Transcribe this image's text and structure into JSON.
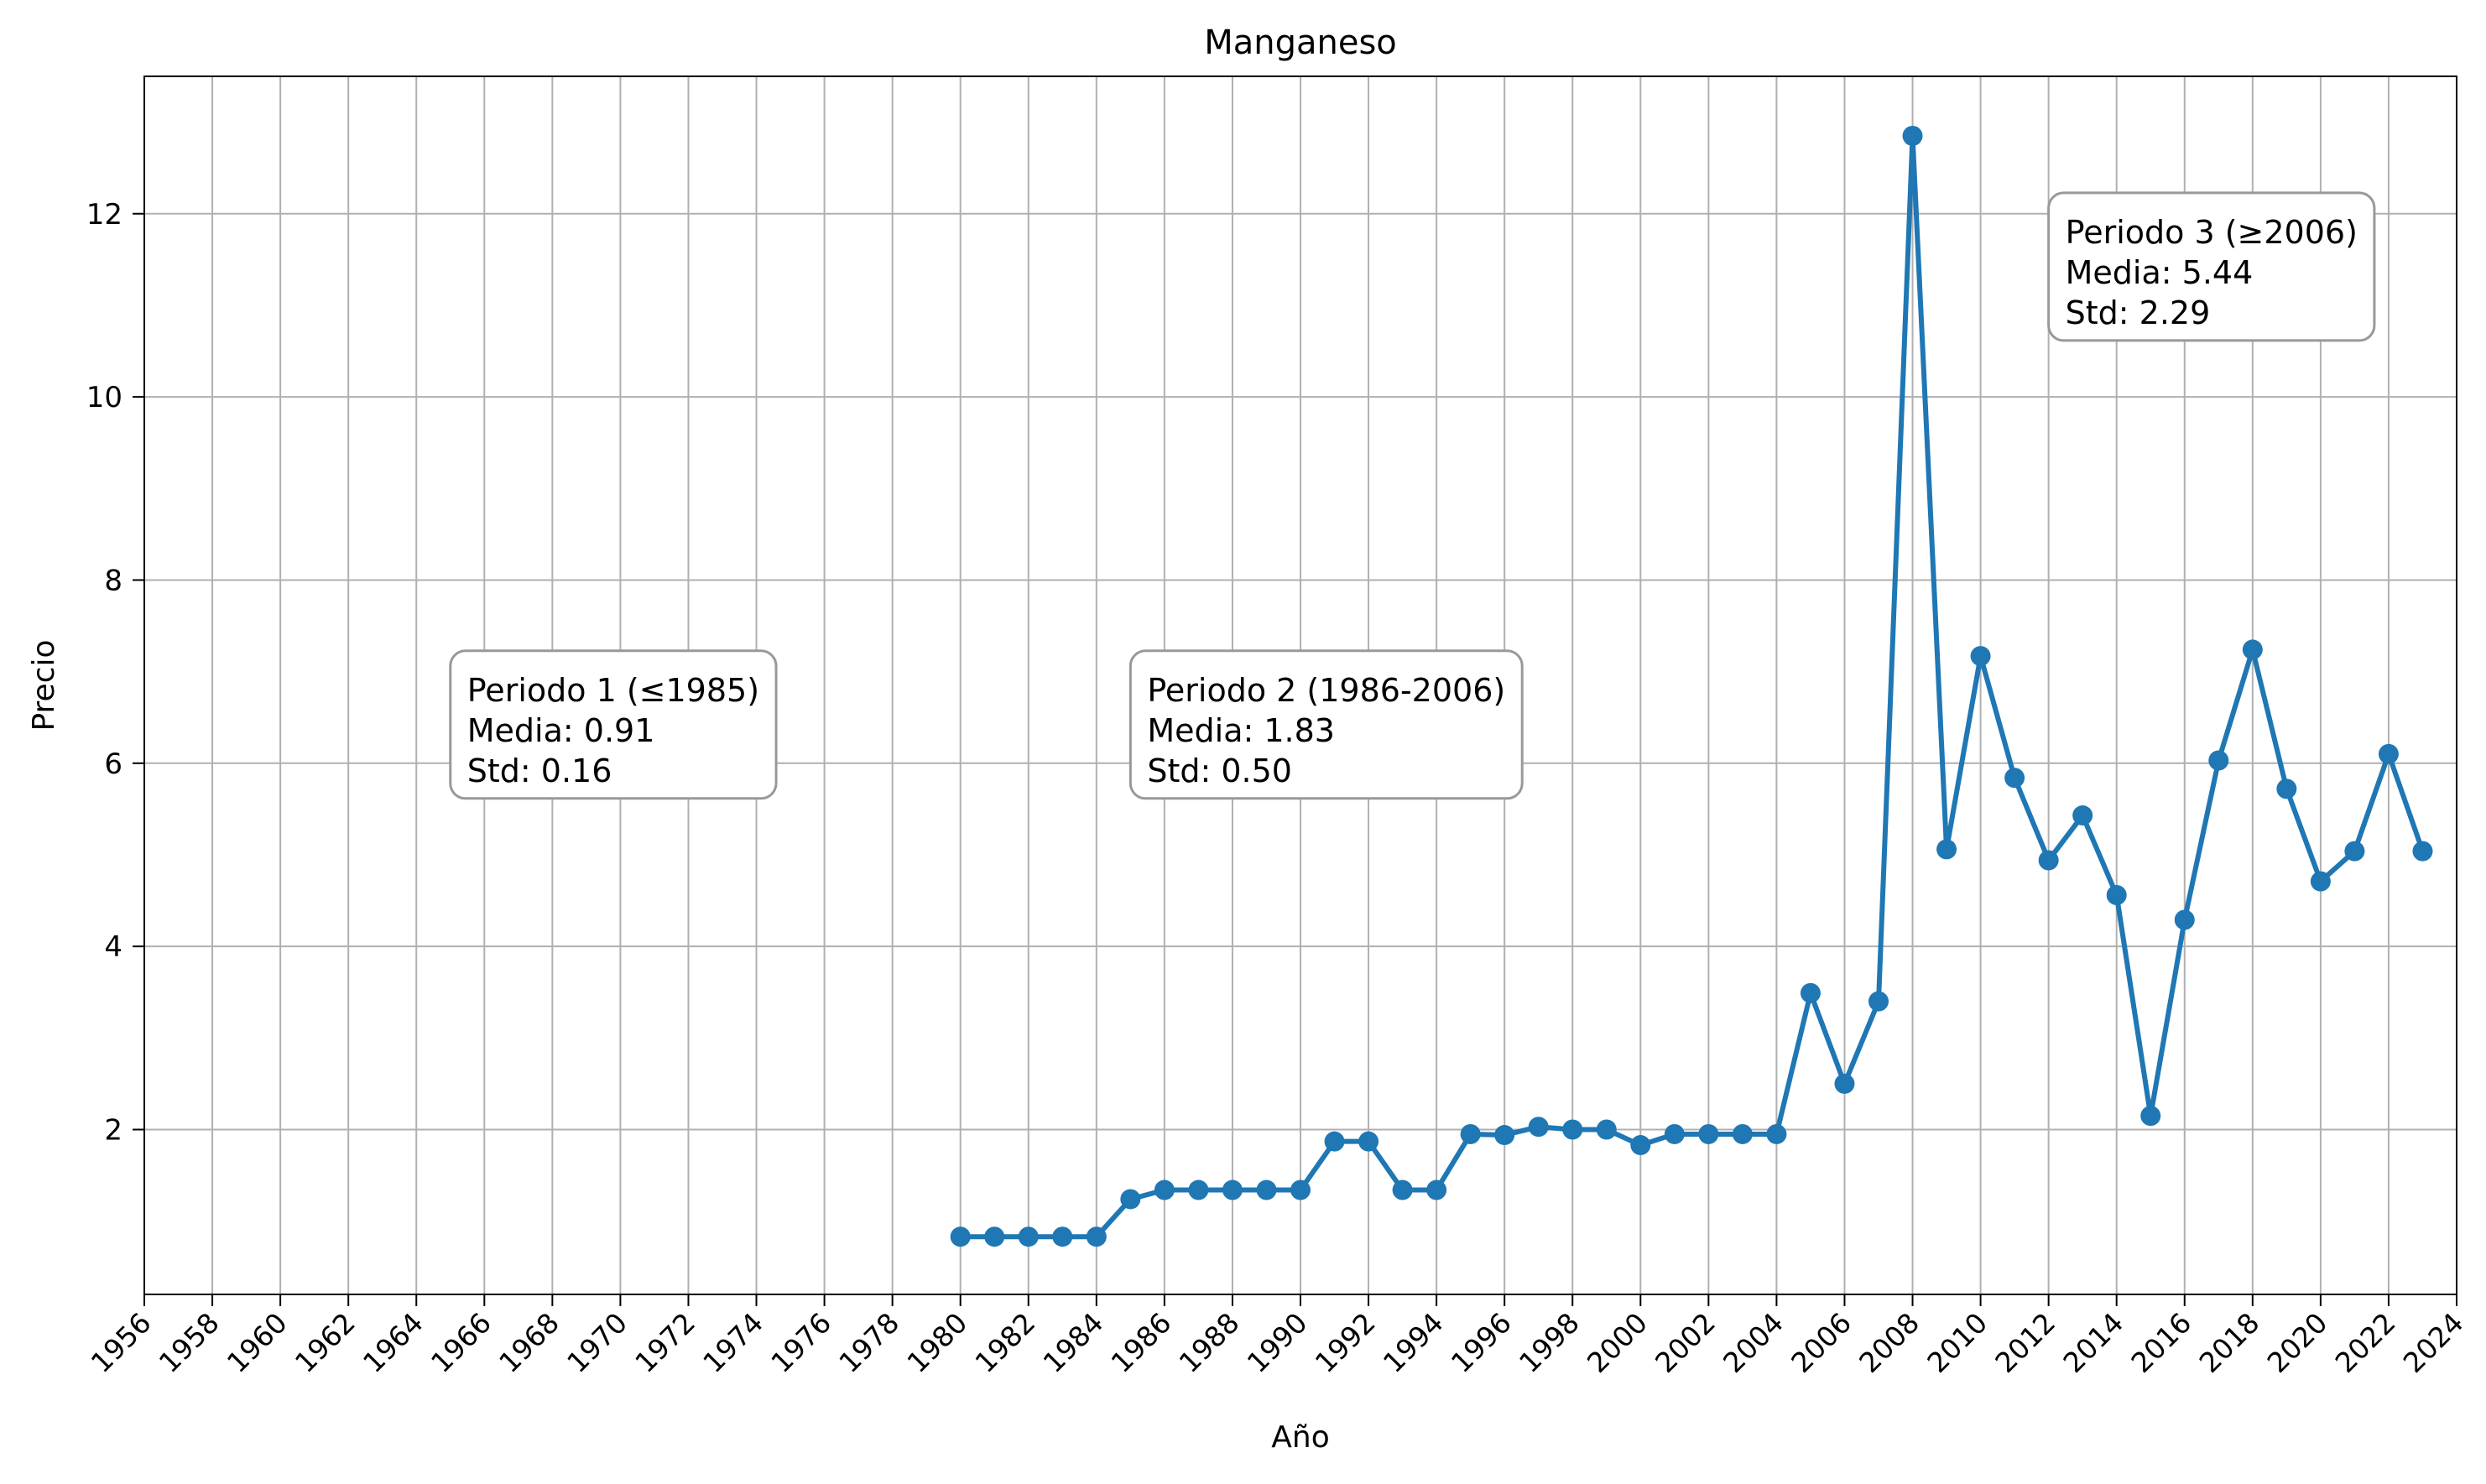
{
  "chart_data": {
    "type": "line",
    "title": "Manganeso",
    "xlabel": "Año",
    "ylabel": "Precio",
    "xlim": [
      1956,
      2024
    ],
    "ylim": [
      0.2,
      13.5
    ],
    "grid": true,
    "x_ticks": [
      1956,
      1958,
      1960,
      1962,
      1964,
      1966,
      1968,
      1970,
      1972,
      1974,
      1976,
      1978,
      1980,
      1982,
      1984,
      1986,
      1988,
      1990,
      1992,
      1994,
      1996,
      1998,
      2000,
      2002,
      2004,
      2006,
      2008,
      2010,
      2012,
      2014,
      2016,
      2018,
      2020,
      2022,
      2024
    ],
    "y_ticks": [
      2,
      4,
      6,
      8,
      10,
      12
    ],
    "series": [
      {
        "color": "#1f77b4",
        "marker": "circle",
        "x": [
          1980,
          1981,
          1982,
          1983,
          1984,
          1985,
          1986,
          1987,
          1988,
          1989,
          1990,
          1991,
          1992,
          1993,
          1994,
          1995,
          1996,
          1997,
          1998,
          1999,
          2000,
          2001,
          2002,
          2003,
          2004,
          2005,
          2006,
          2007,
          2008,
          2009,
          2010,
          2011,
          2012,
          2013,
          2014,
          2015,
          2016,
          2017,
          2018,
          2019,
          2020,
          2021,
          2022,
          2023
        ],
        "y": [
          0.83,
          0.83,
          0.83,
          0.83,
          0.83,
          1.24,
          1.34,
          1.34,
          1.34,
          1.34,
          1.34,
          1.87,
          1.87,
          1.34,
          1.34,
          1.95,
          1.94,
          2.03,
          2.0,
          2.0,
          1.83,
          1.95,
          1.95,
          1.95,
          1.95,
          3.49,
          2.5,
          3.4,
          12.85,
          5.06,
          7.17,
          5.84,
          4.94,
          5.43,
          4.56,
          2.15,
          4.29,
          6.03,
          7.24,
          5.72,
          4.71,
          5.04,
          6.1,
          5.04
        ]
      }
    ],
    "annotations": [
      {
        "x": 1965,
        "y": 6.0,
        "lines": [
          "Periodo 1 (≤1985)",
          "Media: 0.91",
          "Std: 0.16"
        ]
      },
      {
        "x": 1985,
        "y": 6.0,
        "lines": [
          "Periodo 2 (1986-2006)",
          "Media: 1.83",
          "Std: 0.50"
        ]
      },
      {
        "x": 2012,
        "y": 11.0,
        "lines": [
          "Periodo 3 (≥2006)",
          "Media: 5.44",
          "Std: 2.29"
        ]
      }
    ]
  }
}
